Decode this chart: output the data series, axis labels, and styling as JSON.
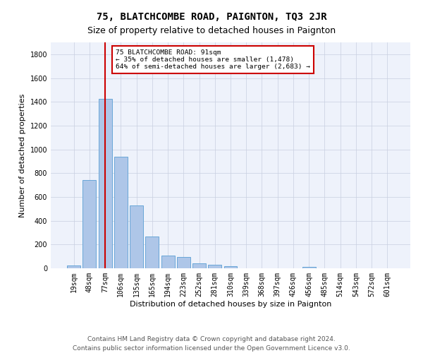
{
  "title": "75, BLATCHCOMBE ROAD, PAIGNTON, TQ3 2JR",
  "subtitle": "Size of property relative to detached houses in Paignton",
  "xlabel": "Distribution of detached houses by size in Paignton",
  "ylabel": "Number of detached properties",
  "footer_line1": "Contains HM Land Registry data © Crown copyright and database right 2024.",
  "footer_line2": "Contains public sector information licensed under the Open Government Licence v3.0.",
  "bins": [
    "19sqm",
    "48sqm",
    "77sqm",
    "106sqm",
    "135sqm",
    "165sqm",
    "194sqm",
    "223sqm",
    "252sqm",
    "281sqm",
    "310sqm",
    "339sqm",
    "368sqm",
    "397sqm",
    "426sqm",
    "456sqm",
    "485sqm",
    "514sqm",
    "543sqm",
    "572sqm",
    "601sqm"
  ],
  "values": [
    22,
    745,
    1425,
    940,
    530,
    265,
    105,
    95,
    40,
    28,
    16,
    2,
    1,
    0,
    0,
    13,
    0,
    0,
    0,
    0,
    0
  ],
  "bar_color": "#aec6e8",
  "bar_edge_color": "#5a9fd4",
  "vline_x_index": 2,
  "vline_color": "#cc0000",
  "annotation_line1": "75 BLATCHCOMBE ROAD: 91sqm",
  "annotation_line2": "← 35% of detached houses are smaller (1,478)",
  "annotation_line3": "64% of semi-detached houses are larger (2,683) →",
  "annotation_box_color": "#cc0000",
  "ylim": [
    0,
    1900
  ],
  "yticks": [
    0,
    200,
    400,
    600,
    800,
    1000,
    1200,
    1400,
    1600,
    1800
  ],
  "background_color": "#eef2fb",
  "grid_color": "#c8cfe0",
  "title_fontsize": 10,
  "subtitle_fontsize": 9,
  "axis_label_fontsize": 8,
  "tick_fontsize": 7,
  "footer_fontsize": 6.5
}
